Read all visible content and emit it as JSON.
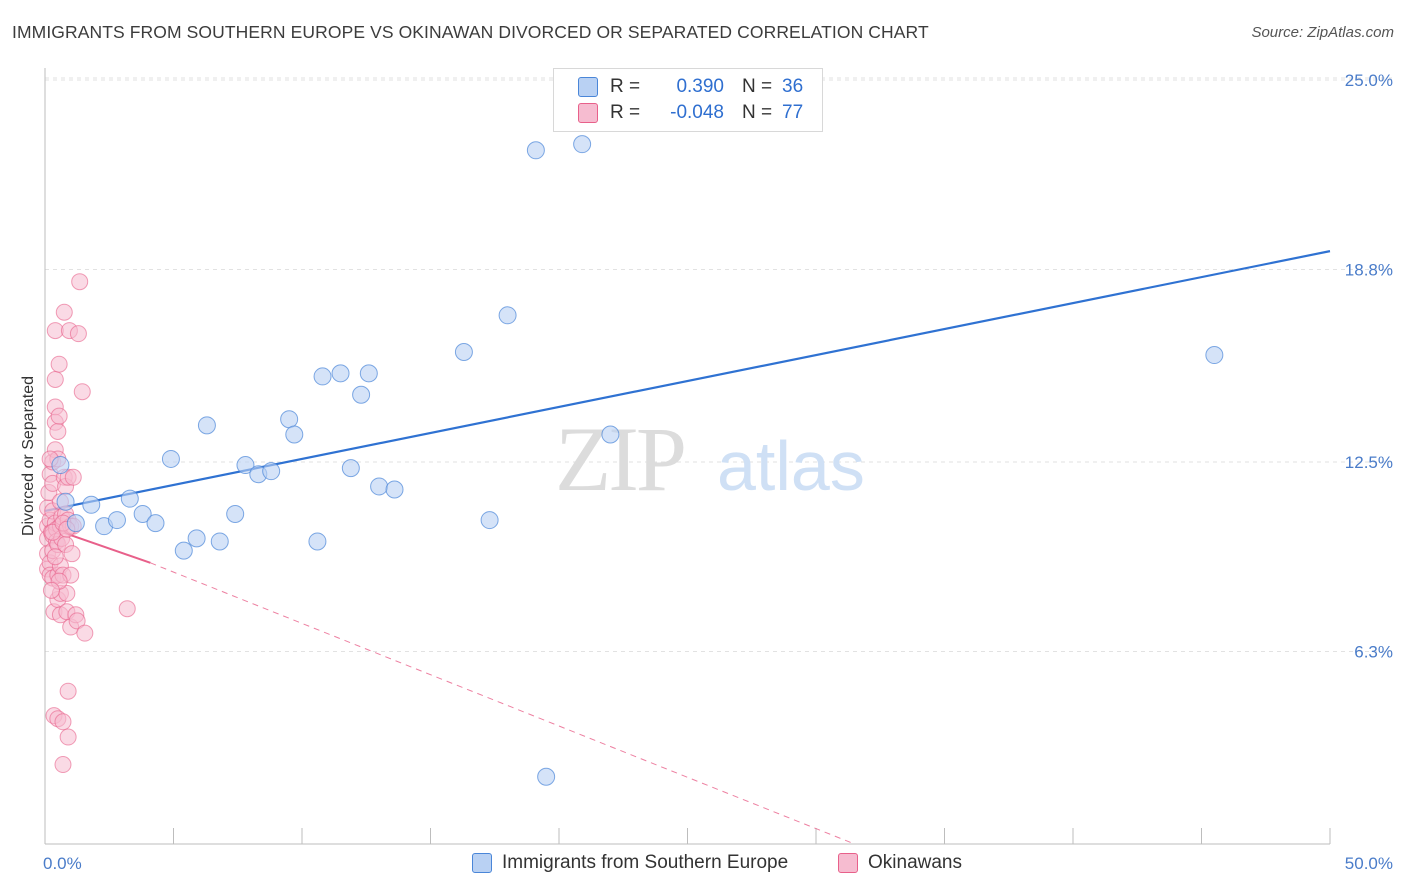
{
  "title": "IMMIGRANTS FROM SOUTHERN EUROPE VS OKINAWAN DIVORCED OR SEPARATED CORRELATION CHART",
  "source": "Source: ZipAtlas.com",
  "watermark": {
    "zip": "ZIP",
    "atlas": "atlas"
  },
  "legend": {
    "series1": {
      "r_label": "R =",
      "r_value": "0.390",
      "n_label": "N =",
      "n_value": "36"
    },
    "series2": {
      "r_label": "R =",
      "r_value": "-0.048",
      "n_label": "N =",
      "n_value": "77"
    }
  },
  "chart_data": {
    "type": "scatter",
    "title": "IMMIGRANTS FROM SOUTHERN EUROPE VS OKINAWAN DIVORCED OR SEPARATED CORRELATION CHART",
    "xlabel": "",
    "ylabel": "Divorced or Separated",
    "xlim": [
      0,
      50
    ],
    "ylim": [
      0,
      25
    ],
    "x_tick_labels": [
      "0.0%",
      "50.0%"
    ],
    "y_ticks": [
      6.3,
      12.5,
      18.8,
      25.0
    ],
    "y_tick_labels": [
      "6.3%",
      "12.5%",
      "18.8%",
      "25.0%"
    ],
    "grid": true,
    "colors": {
      "series1": "#4a86d8",
      "series1_fill": "#b9d1f3",
      "series2": "#e8608a",
      "series2_fill": "#f6bcd0"
    },
    "series": [
      {
        "name": "Immigrants from Southern Europe",
        "trend": {
          "x0": 0,
          "y0": 10.9,
          "x1": 50,
          "y1": 19.4
        },
        "points": [
          [
            0.6,
            12.4
          ],
          [
            0.8,
            11.2
          ],
          [
            1.2,
            10.5
          ],
          [
            1.8,
            11.1
          ],
          [
            2.3,
            10.4
          ],
          [
            2.8,
            10.6
          ],
          [
            3.3,
            11.3
          ],
          [
            3.8,
            10.8
          ],
          [
            4.3,
            10.5
          ],
          [
            4.9,
            12.6
          ],
          [
            5.4,
            9.6
          ],
          [
            5.9,
            10.0
          ],
          [
            6.3,
            13.7
          ],
          [
            6.8,
            9.9
          ],
          [
            7.4,
            10.8
          ],
          [
            7.8,
            12.4
          ],
          [
            8.3,
            12.1
          ],
          [
            8.8,
            12.2
          ],
          [
            9.5,
            13.9
          ],
          [
            9.7,
            13.4
          ],
          [
            10.6,
            9.9
          ],
          [
            10.8,
            15.3
          ],
          [
            11.5,
            15.4
          ],
          [
            11.9,
            12.3
          ],
          [
            12.3,
            14.7
          ],
          [
            12.6,
            15.4
          ],
          [
            13.0,
            11.7
          ],
          [
            13.6,
            11.6
          ],
          [
            16.3,
            16.1
          ],
          [
            17.3,
            10.6
          ],
          [
            18.0,
            17.3
          ],
          [
            19.1,
            22.7
          ],
          [
            19.5,
            2.2
          ],
          [
            20.9,
            22.9
          ],
          [
            22.0,
            13.4
          ],
          [
            45.5,
            16.0
          ]
        ]
      },
      {
        "name": "Okinawans",
        "trend": {
          "x0": 0,
          "y0": 10.4,
          "x1": 4.1,
          "y1": 9.2,
          "dash_x1": 31.5,
          "dash_y1": 0
        },
        "points": [
          [
            0.1,
            10.4
          ],
          [
            0.1,
            10.0
          ],
          [
            0.1,
            9.5
          ],
          [
            0.1,
            9.0
          ],
          [
            0.1,
            11.0
          ],
          [
            0.15,
            11.5
          ],
          [
            0.2,
            12.1
          ],
          [
            0.2,
            10.6
          ],
          [
            0.2,
            9.2
          ],
          [
            0.2,
            8.8
          ],
          [
            0.25,
            10.2
          ],
          [
            0.3,
            12.5
          ],
          [
            0.3,
            11.8
          ],
          [
            0.3,
            10.9
          ],
          [
            0.3,
            10.1
          ],
          [
            0.3,
            9.6
          ],
          [
            0.3,
            8.7
          ],
          [
            0.35,
            7.6
          ],
          [
            0.35,
            4.2
          ],
          [
            0.4,
            16.8
          ],
          [
            0.4,
            15.2
          ],
          [
            0.4,
            14.3
          ],
          [
            0.4,
            13.8
          ],
          [
            0.4,
            12.9
          ],
          [
            0.4,
            10.5
          ],
          [
            0.45,
            10.3
          ],
          [
            0.45,
            9.9
          ],
          [
            0.5,
            13.5
          ],
          [
            0.5,
            12.6
          ],
          [
            0.5,
            9.8
          ],
          [
            0.5,
            8.8
          ],
          [
            0.5,
            8.0
          ],
          [
            0.5,
            4.1
          ],
          [
            0.55,
            15.7
          ],
          [
            0.55,
            14.0
          ],
          [
            0.6,
            11.2
          ],
          [
            0.6,
            10.4
          ],
          [
            0.6,
            9.1
          ],
          [
            0.6,
            8.2
          ],
          [
            0.6,
            7.5
          ],
          [
            0.65,
            10.7
          ],
          [
            0.65,
            10.0
          ],
          [
            0.7,
            8.8
          ],
          [
            0.7,
            4.0
          ],
          [
            0.7,
            2.6
          ],
          [
            0.75,
            17.4
          ],
          [
            0.75,
            12.0
          ],
          [
            0.8,
            11.7
          ],
          [
            0.8,
            10.8
          ],
          [
            0.8,
            9.8
          ],
          [
            0.85,
            8.2
          ],
          [
            0.85,
            7.6
          ],
          [
            0.9,
            12.0
          ],
          [
            0.9,
            10.6
          ],
          [
            0.9,
            5.0
          ],
          [
            0.9,
            3.5
          ],
          [
            0.95,
            16.8
          ],
          [
            1.0,
            10.4
          ],
          [
            1.0,
            8.8
          ],
          [
            1.0,
            7.1
          ],
          [
            1.05,
            9.5
          ],
          [
            1.1,
            12.0
          ],
          [
            1.1,
            10.4
          ],
          [
            1.2,
            7.5
          ],
          [
            1.25,
            7.3
          ],
          [
            1.3,
            16.7
          ],
          [
            1.35,
            18.4
          ],
          [
            1.45,
            14.8
          ],
          [
            1.55,
            6.9
          ],
          [
            3.2,
            7.7
          ],
          [
            0.2,
            12.6
          ],
          [
            0.3,
            10.2
          ],
          [
            0.4,
            9.4
          ],
          [
            0.55,
            8.6
          ],
          [
            0.7,
            10.5
          ],
          [
            0.25,
            8.3
          ],
          [
            0.85,
            10.3
          ]
        ]
      }
    ]
  },
  "bottom_legend": {
    "series1": "Immigrants from Southern Europe",
    "series2": "Okinawans"
  }
}
